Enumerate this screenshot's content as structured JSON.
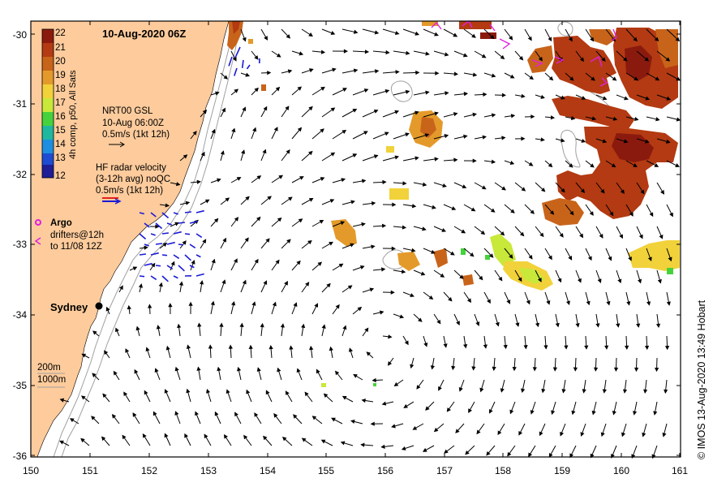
{
  "title": "10-Aug-2020 06Z",
  "colorbar": {
    "label": "4h comp, p50, All Sats",
    "ticks": [
      "22",
      "21",
      "20",
      "19",
      "18",
      "17",
      "16",
      "15",
      "14",
      "13",
      "12"
    ],
    "colors": [
      "#8b1a0e",
      "#b33a12",
      "#c8641a",
      "#e49a2a",
      "#f2d23a",
      "#c8e83a",
      "#46d23c",
      "#1eb8a0",
      "#1e8ee0",
      "#1e4cd2",
      "#1e1e96"
    ]
  },
  "legend": {
    "gsl_title": "NRT00 GSL",
    "gsl_time": "10-Aug 06:00Z",
    "gsl_scale": "0.5m/s (1kt 12h)",
    "hf_title": "HF radar velocity",
    "hf_avg": "(3-12h avg) noQC",
    "hf_scale": "0.5m/s (1kt 12h)",
    "argo_label": "Argo",
    "drifter_line1": "drifters@12h",
    "drifter_line2": "to 11/08 12Z",
    "iso200": "200m",
    "iso1000": "1000m"
  },
  "city": "Sydney",
  "x_ticks": [
    "150",
    "151",
    "152",
    "153",
    "154",
    "155",
    "156",
    "157",
    "158",
    "159",
    "160",
    "161"
  ],
  "y_ticks": [
    "-30",
    "-31",
    "-32",
    "-33",
    "-34",
    "-35",
    "-36"
  ],
  "credit": "© IMOS 13-Aug-2020 13:49 Hobart",
  "map_data": {
    "lon_range": [
      150,
      161
    ],
    "lat_range": [
      -36,
      -30
    ],
    "land_color": "#fdcb9c",
    "colors": {
      "gsl_arrow": "#000000",
      "hf_arrow": "#1a1ad6",
      "argo": "#e020e0",
      "drifter": "#e020e0"
    }
  }
}
